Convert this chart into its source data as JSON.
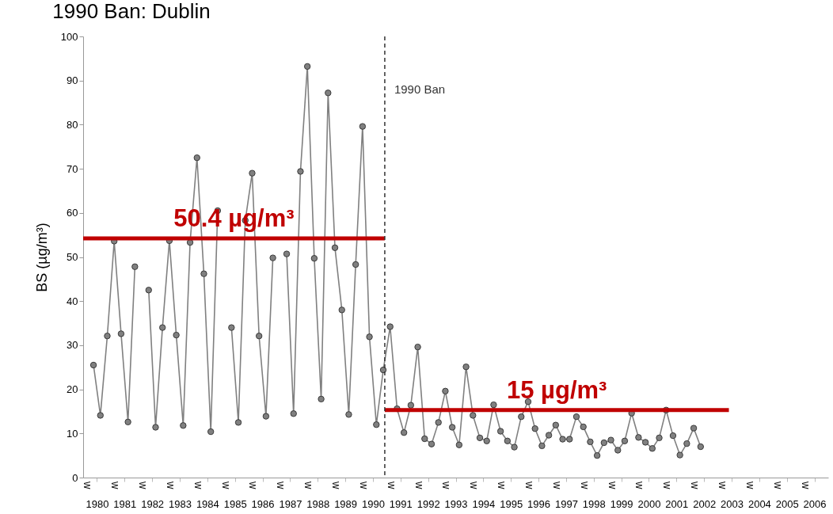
{
  "chart_data": {
    "type": "line",
    "title": "1990 Ban: Dublin",
    "ylabel": "BS (µg/m³)",
    "marker": "circle",
    "grid": false,
    "xlim": [
      1979.5,
      2006.5
    ],
    "ylim": [
      0,
      100
    ],
    "yticks": [
      0,
      10,
      20,
      30,
      40,
      50,
      60,
      70,
      80,
      90,
      100
    ],
    "xticks": [
      1980,
      1981,
      1982,
      1983,
      1984,
      1985,
      1986,
      1987,
      1988,
      1989,
      1990,
      1991,
      1992,
      1993,
      1994,
      1995,
      1996,
      1997,
      1998,
      1999,
      2000,
      2001,
      2002,
      2003,
      2004,
      2005,
      2006
    ],
    "x": [
      1979.875,
      1980.125,
      1980.375,
      1980.625,
      1980.875,
      1981.125,
      1981.375,
      1981.625,
      1981.875,
      1982.125,
      1982.375,
      1982.625,
      1982.875,
      1983.125,
      1983.375,
      1983.625,
      1983.875,
      1984.125,
      1984.375,
      1984.625,
      1984.875,
      1985.125,
      1985.375,
      1985.625,
      1985.875,
      1986.125,
      1986.375,
      1986.625,
      1986.875,
      1987.125,
      1987.375,
      1987.625,
      1987.875,
      1988.125,
      1988.375,
      1988.625,
      1988.875,
      1989.125,
      1989.375,
      1989.625,
      1989.875,
      1990.125,
      1990.375,
      1990.625,
      1990.875,
      1991.125,
      1991.375,
      1991.625,
      1991.875,
      1992.125,
      1992.375,
      1992.625,
      1992.875,
      1993.125,
      1993.375,
      1993.625,
      1993.875,
      1994.125,
      1994.375,
      1994.625,
      1994.875,
      1995.125,
      1995.375,
      1995.625,
      1995.875,
      1996.125,
      1996.375,
      1996.625,
      1996.875,
      1997.125,
      1997.375,
      1997.625,
      1997.875,
      1998.125,
      1998.375,
      1998.625,
      1998.875,
      1999.125,
      1999.375,
      1999.625,
      1999.875,
      2000.125,
      2000.375,
      2000.625,
      2000.875,
      2001.125,
      2001.375,
      2001.625,
      2001.875
    ],
    "series": [
      {
        "color": "#808080",
        "values": [
          25.5,
          14.1,
          32.1,
          53.6,
          32.6,
          12.6,
          47.8,
          null,
          42.5,
          11.4,
          34.0,
          53.7,
          32.3,
          11.8,
          53.3,
          72.5,
          46.2,
          10.4,
          60.5,
          null,
          34.0,
          12.5,
          58.3,
          69.0,
          32.1,
          13.9,
          49.8,
          null,
          50.7,
          14.5,
          69.4,
          93.2,
          49.7,
          17.8,
          87.2,
          52.1,
          38.0,
          14.3,
          48.3,
          79.6,
          31.9,
          12.0,
          24.4,
          34.2,
          15.6,
          10.2,
          16.4,
          29.6,
          8.8,
          7.6,
          12.5,
          19.6,
          11.4,
          7.4,
          25.1,
          14.1,
          9.0,
          8.3,
          16.5,
          10.5,
          8.3,
          6.9,
          13.8,
          17.2,
          11.1,
          7.2,
          9.6,
          11.9,
          8.7,
          8.7,
          13.8,
          11.5,
          8.1,
          5.0,
          7.9,
          8.5,
          6.2,
          8.3,
          14.6,
          9.1,
          8.0,
          6.6,
          9.0,
          15.3,
          9.5,
          5.1,
          7.7,
          11.2,
          7.0
        ]
      },
      {
        "type": "line",
        "marker": "none",
        "name": "50.4 µg/m³",
        "color": "#c00000",
        "x": [
          1979.5,
          1990.43
        ],
        "values": [
          54.2,
          54.2
        ]
      },
      {
        "type": "line",
        "marker": "none",
        "name": "15 µg/m³",
        "color": "#c00000",
        "x": [
          1990.43,
          2002.9
        ],
        "values": [
          15.3,
          15.3
        ]
      }
    ],
    "ref_lines": [
      {
        "axis": "x",
        "value": 1990.43,
        "label": "1990 Ban",
        "color": "#333333",
        "line_style": "dashed"
      }
    ],
    "annotations": [
      "W",
      "W",
      "W",
      "W",
      "W",
      "W",
      "W",
      "W",
      "W",
      "W",
      "W",
      "W",
      "W",
      "W",
      "W",
      "W",
      "W",
      "W",
      "W",
      "W",
      "W",
      "W",
      "W",
      "W",
      "W",
      "W",
      "W"
    ]
  }
}
